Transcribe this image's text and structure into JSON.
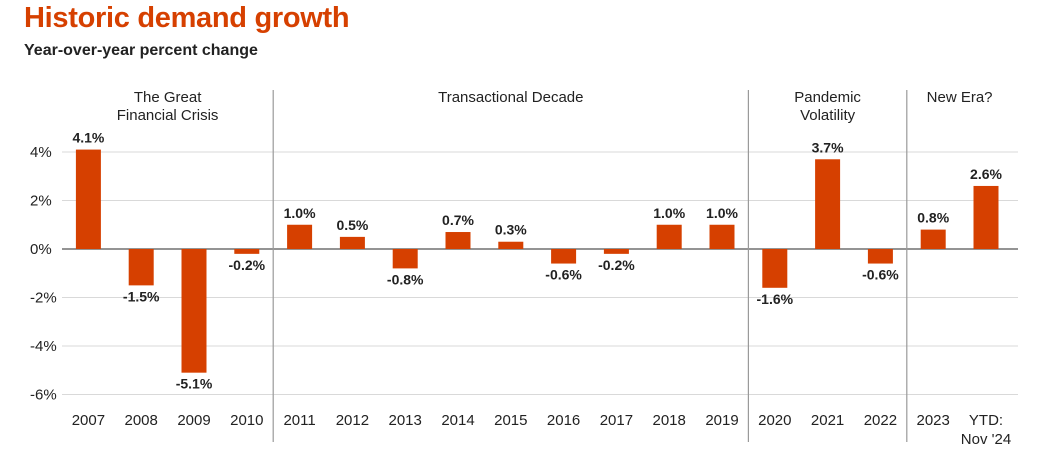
{
  "header": {
    "title": "Historic demand growth",
    "subtitle": "Year-over-year percent change"
  },
  "colors": {
    "bar": "#d64000",
    "title": "#d64000"
  },
  "chart_data": {
    "type": "bar",
    "title": "Historic demand growth",
    "subtitle": "Year-over-year percent change",
    "categories": [
      [
        "2007"
      ],
      [
        "2008"
      ],
      [
        "2009"
      ],
      [
        "2010"
      ],
      [
        "2011"
      ],
      [
        "2012"
      ],
      [
        "2013"
      ],
      [
        "2014"
      ],
      [
        "2015"
      ],
      [
        "2016"
      ],
      [
        "2017"
      ],
      [
        "2018"
      ],
      [
        "2019"
      ],
      [
        "2020"
      ],
      [
        "2021"
      ],
      [
        "2022"
      ],
      [
        "2023"
      ],
      [
        "YTD:",
        "Nov '24"
      ]
    ],
    "values": [
      4.1,
      -1.5,
      -5.1,
      -0.2,
      1.0,
      0.5,
      -0.8,
      0.7,
      0.3,
      -0.6,
      -0.2,
      1.0,
      1.0,
      -1.6,
      3.7,
      -0.6,
      0.8,
      2.6
    ],
    "data_labels": [
      "4.1%",
      "-1.5%",
      "-5.1%",
      "-0.2%",
      "1.0%",
      "0.5%",
      "-0.8%",
      "0.7%",
      "0.3%",
      "-0.6%",
      "-0.2%",
      "1.0%",
      "1.0%",
      "-1.6%",
      "3.7%",
      "-0.6%",
      "0.8%",
      "2.6%"
    ],
    "y_ticks": [
      4,
      2,
      0,
      -2,
      -4,
      -6
    ],
    "y_tick_labels": [
      "4%",
      "2%",
      "0%",
      "-2%",
      "-4%",
      "-6%"
    ],
    "ylim": [
      -6,
      4.8
    ],
    "grid": true,
    "periods": [
      {
        "label": [
          "The Great",
          "Financial Crisis"
        ],
        "first_index": 0,
        "last_index": 3
      },
      {
        "label": [
          "Transactional Decade"
        ],
        "first_index": 4,
        "last_index": 12
      },
      {
        "label": [
          "Pandemic",
          "Volatility"
        ],
        "first_index": 13,
        "last_index": 15
      },
      {
        "label": [
          "New Era?"
        ],
        "first_index": 16,
        "last_index": 17
      }
    ]
  }
}
